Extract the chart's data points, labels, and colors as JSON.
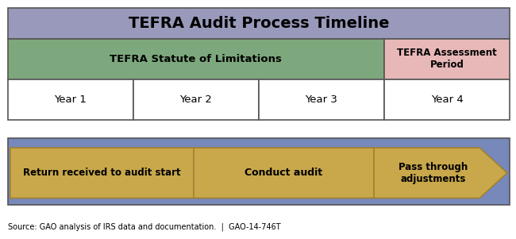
{
  "title": "TEFRA Audit Process Timeline",
  "title_fontsize": 14,
  "title_bg_color": "#9999bb",
  "outer_border_color": "#555555",
  "row1_bg": "#7da87d",
  "row1_text": "TEFRA Statute of Limitations",
  "row1_assessment_bg": "#e8b8b8",
  "row1_assessment_text": "TEFRA Assessment\nPeriod",
  "row2_bg": "#ffffff",
  "year_labels": [
    "Year 1",
    "Year 2",
    "Year 3",
    "Year 4"
  ],
  "row3_bg": "#7788bb",
  "arrow_color": "#c8a84b",
  "arrow_edge_color": "#a08030",
  "arrow_section1_text": "Return received to audit start",
  "arrow_section2_text": "Conduct audit",
  "arrow_section3_text": "Pass through\nadjustments",
  "divider_color": "#555555",
  "source_text": "Source: GAO analysis of IRS data and documentation.  |  GAO-14-746T",
  "source_fontsize": 7,
  "fig_bg": "#ffffff"
}
